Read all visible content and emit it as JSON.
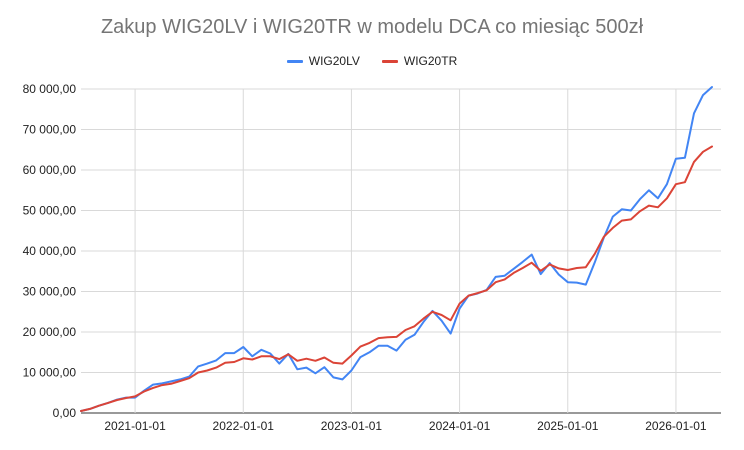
{
  "chart_data": {
    "type": "line",
    "title": "Zakup WIG20LV i WIG20TR w modelu DCA co miesiąc 500zł",
    "xlabel": "",
    "ylabel": "",
    "x_ticks": [
      {
        "label": "2021-01-01",
        "month": 6
      },
      {
        "label": "2022-01-01",
        "month": 18
      },
      {
        "label": "2023-01-01",
        "month": 30
      },
      {
        "label": "2024-01-01",
        "month": 42
      },
      {
        "label": "2025-01-01",
        "month": 54
      },
      {
        "label": "2026-01-01",
        "month": 66
      }
    ],
    "x_range": [
      0,
      71
    ],
    "ylim": [
      0,
      80000
    ],
    "y_ticks": [
      {
        "value": 0,
        "label": "0,00"
      },
      {
        "value": 10000,
        "label": "10 000,00"
      },
      {
        "value": 20000,
        "label": "20 000,00"
      },
      {
        "value": 30000,
        "label": "30 000,00"
      },
      {
        "value": 40000,
        "label": "40 000,00"
      },
      {
        "value": 50000,
        "label": "50 000,00"
      },
      {
        "value": 60000,
        "label": "60 000,00"
      },
      {
        "value": 70000,
        "label": "70 000,00"
      },
      {
        "value": 80000,
        "label": "80 000,00"
      }
    ],
    "grid": true,
    "legend_position": "top",
    "series": [
      {
        "name": "WIG20LV",
        "color": "#4285f4",
        "values": [
          500,
          1000,
          1800,
          2500,
          3300,
          3800,
          3800,
          5500,
          7000,
          7300,
          7800,
          8300,
          9000,
          11500,
          12200,
          13000,
          14800,
          14800,
          16300,
          14000,
          15600,
          14700,
          12200,
          14600,
          10800,
          11200,
          9800,
          11300,
          8800,
          8300,
          10500,
          13800,
          15000,
          16600,
          16600,
          15400,
          18100,
          19300,
          22500,
          25200,
          22800,
          19600,
          25800,
          29000,
          29500,
          30400,
          33600,
          33900,
          35600,
          37300,
          39100,
          34300,
          37000,
          34200,
          32300,
          32200,
          31700,
          37200,
          43300,
          48500,
          50300,
          50000,
          52800,
          55000,
          53000,
          56500,
          62800,
          63000,
          74000,
          78500,
          80500
        ]
      },
      {
        "name": "WIG20TR",
        "color": "#db4437",
        "values": [
          500,
          1000,
          1800,
          2500,
          3200,
          3700,
          4100,
          5300,
          6200,
          6900,
          7200,
          7900,
          8600,
          10000,
          10500,
          11200,
          12400,
          12600,
          13500,
          13200,
          14000,
          14000,
          13300,
          14500,
          12900,
          13400,
          12900,
          13700,
          12400,
          12200,
          14200,
          16400,
          17300,
          18500,
          18700,
          18800,
          20500,
          21400,
          23300,
          25000,
          24200,
          22900,
          27000,
          29000,
          29600,
          30300,
          32300,
          33000,
          34600,
          35800,
          37100,
          35100,
          36700,
          35700,
          35300,
          35800,
          36000,
          39300,
          43500,
          45700,
          47500,
          47800,
          49800,
          51200,
          50800,
          53000,
          56500,
          57000,
          62000,
          64500,
          65800
        ]
      }
    ]
  }
}
